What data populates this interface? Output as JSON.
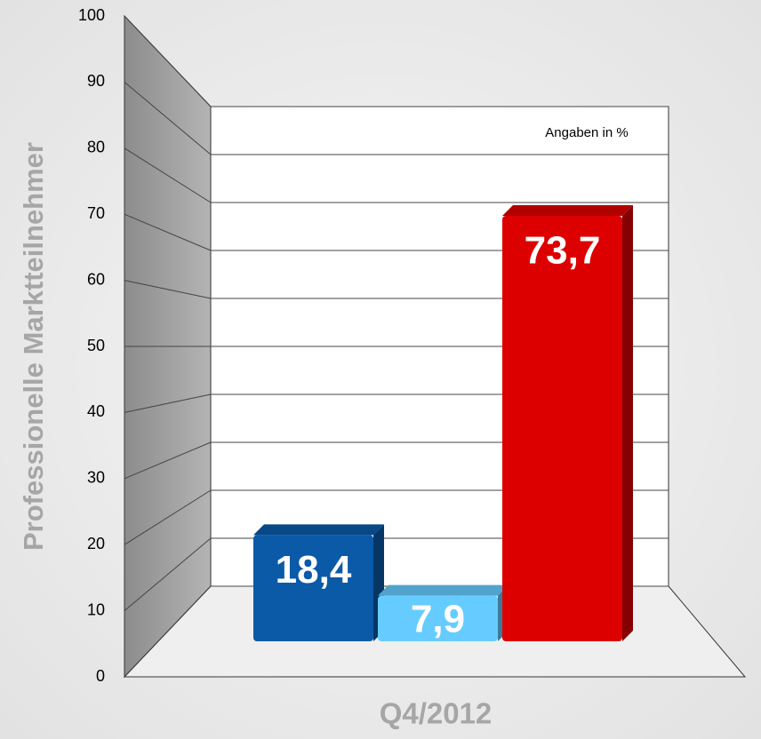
{
  "chart_data": {
    "type": "bar3d",
    "y_axis_label": "Professionelle Marktteilnehmer",
    "categories": [
      "Q4/2012"
    ],
    "annotation": "Angaben in %",
    "series": [
      {
        "color": "#0a5aa8",
        "values": [
          18.4
        ],
        "value_labels": [
          "18,4"
        ]
      },
      {
        "color": "#66ccff",
        "values": [
          7.9
        ],
        "value_labels": [
          "7,9"
        ]
      },
      {
        "color": "#dd0000",
        "values": [
          73.7
        ],
        "value_labels": [
          "73,7"
        ]
      }
    ],
    "ylim": [
      0,
      100
    ],
    "yticks": [
      0,
      10,
      20,
      30,
      40,
      50,
      60,
      70,
      80,
      90,
      100
    ],
    "grid": true
  }
}
